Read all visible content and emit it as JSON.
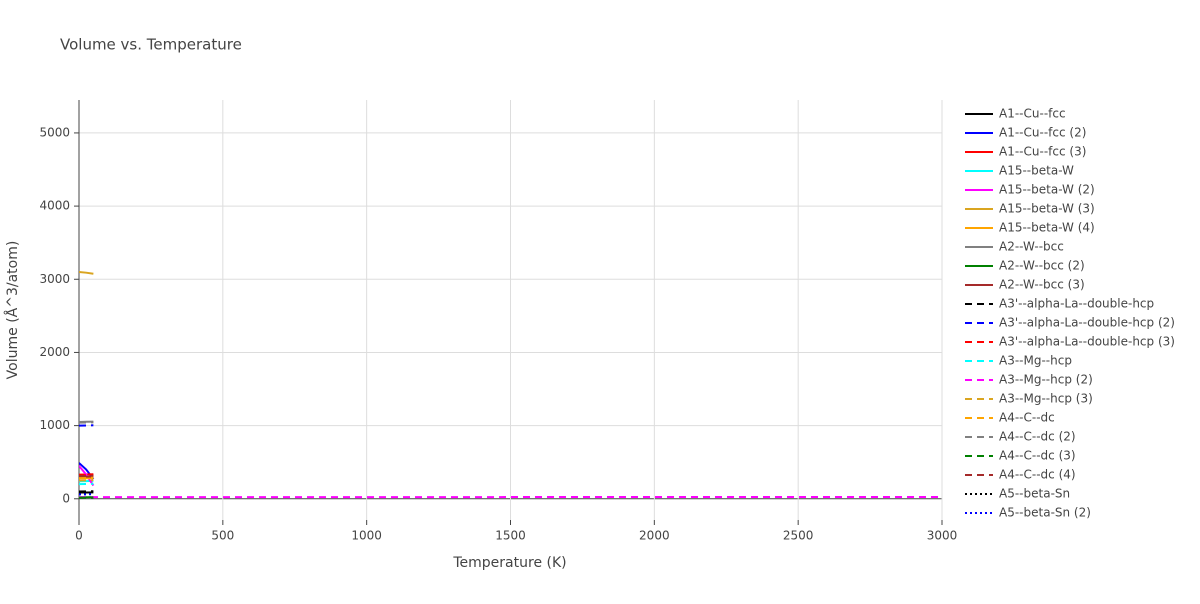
{
  "chart_data": {
    "type": "line",
    "title": "Volume vs. Temperature",
    "x_label": "Temperature (K)",
    "y_label": "Volume (Å^3/atom)",
    "xlim": [
      0,
      3000
    ],
    "ylim": [
      -290,
      5450
    ],
    "xticks": [
      0,
      500,
      1000,
      1500,
      2000,
      2500,
      3000
    ],
    "yticks": [
      0,
      1000,
      2000,
      3000,
      4000,
      5000
    ],
    "grid": true,
    "legend": "right",
    "series": [
      {
        "name": "A1--Cu--fcc",
        "color": "#000000",
        "dash": "solid",
        "x": [
          0,
          25,
          50
        ],
        "values": [
          85,
          86,
          88
        ]
      },
      {
        "name": "A1--Cu--fcc (2)",
        "color": "#0000ff",
        "dash": "solid",
        "x": [
          0,
          25,
          50
        ],
        "values": [
          490,
          400,
          270
        ]
      },
      {
        "name": "A1--Cu--fcc (3)",
        "color": "#ff0000",
        "dash": "solid",
        "x": [
          0,
          25,
          50
        ],
        "values": [
          330,
          332,
          335
        ]
      },
      {
        "name": "A15--beta-W",
        "color": "#00ffff",
        "dash": "solid",
        "x": [
          0,
          25,
          50
        ],
        "values": [
          240,
          242,
          245
        ]
      },
      {
        "name": "A15--beta-W (2)",
        "color": "#ff00ff",
        "dash": "solid",
        "x": [
          0,
          25,
          50
        ],
        "values": [
          450,
          330,
          180
        ]
      },
      {
        "name": "A15--beta-W (3)",
        "color": "#daa520",
        "dash": "solid",
        "x": [
          0,
          25,
          50
        ],
        "values": [
          3100,
          3090,
          3075
        ]
      },
      {
        "name": "A15--beta-W (4)",
        "color": "#ffa500",
        "dash": "solid",
        "x": [
          0,
          25,
          50
        ],
        "values": [
          280,
          281,
          283
        ]
      },
      {
        "name": "A2--W--bcc",
        "color": "#808080",
        "dash": "solid",
        "x": [
          0,
          25,
          50
        ],
        "values": [
          1050,
          1052,
          1055
        ]
      },
      {
        "name": "A2--W--bcc (2)",
        "color": "#008000",
        "dash": "solid",
        "x": [
          0,
          25,
          50
        ],
        "values": [
          20,
          21,
          22
        ]
      },
      {
        "name": "A2--W--bcc (3)",
        "color": "#a52a2a",
        "dash": "solid",
        "x": [
          0,
          25,
          50
        ],
        "values": [
          300,
          302,
          305
        ]
      },
      {
        "name": "A3'--alpha-La--double-hcp",
        "color": "#000000",
        "dash": "dash",
        "x": [
          0,
          25,
          50
        ],
        "values": [
          100,
          101,
          103
        ]
      },
      {
        "name": "A3'--alpha-La--double-hcp (2)",
        "color": "#0000ff",
        "dash": "dash",
        "x": [
          0,
          25,
          50
        ],
        "values": [
          1000,
          1002,
          1005
        ]
      },
      {
        "name": "A3'--alpha-La--double-hcp (3)",
        "color": "#ff0000",
        "dash": "dash",
        "x": [
          0,
          25,
          50
        ],
        "values": [
          320,
          322,
          325
        ]
      },
      {
        "name": "A3--Mg--hcp",
        "color": "#00ffff",
        "dash": "dash",
        "x": [
          0,
          25,
          50
        ],
        "values": [
          200,
          202,
          205
        ]
      },
      {
        "name": "A3--Mg--hcp (2)",
        "color": "#ff00ff",
        "dash": "dash",
        "x": [
          0,
          1000,
          2000,
          3000
        ],
        "values": [
          22,
          23,
          24,
          25
        ]
      },
      {
        "name": "A3--Mg--hcp (3)",
        "color": "#daa520",
        "dash": "dash",
        "x": [
          0,
          25,
          50
        ],
        "values": [
          250,
          252,
          255
        ]
      },
      {
        "name": "A4--C--dc",
        "color": "#ffa500",
        "dash": "dash",
        "x": [
          0,
          25,
          50
        ],
        "values": [
          290,
          291,
          293
        ]
      },
      {
        "name": "A4--C--dc (2)",
        "color": "#808080",
        "dash": "dash",
        "x": [
          0,
          25,
          50
        ],
        "values": [
          1040,
          1042,
          1045
        ]
      },
      {
        "name": "A4--C--dc (3)",
        "color": "#008000",
        "dash": "dash",
        "x": [
          0,
          25,
          50
        ],
        "values": [
          15,
          16,
          17
        ]
      },
      {
        "name": "A4--C--dc (4)",
        "color": "#a52a2a",
        "dash": "dash",
        "x": [
          0,
          25,
          50
        ],
        "values": [
          310,
          312,
          315
        ]
      },
      {
        "name": "A5--beta-Sn",
        "color": "#000000",
        "dash": "dot",
        "x": [
          0,
          25,
          50
        ],
        "values": [
          80,
          81,
          83
        ]
      },
      {
        "name": "A5--beta-Sn (2)",
        "color": "#0000ff",
        "dash": "dot",
        "x": [
          0,
          25,
          50
        ],
        "values": [
          60,
          61,
          62
        ]
      }
    ]
  }
}
